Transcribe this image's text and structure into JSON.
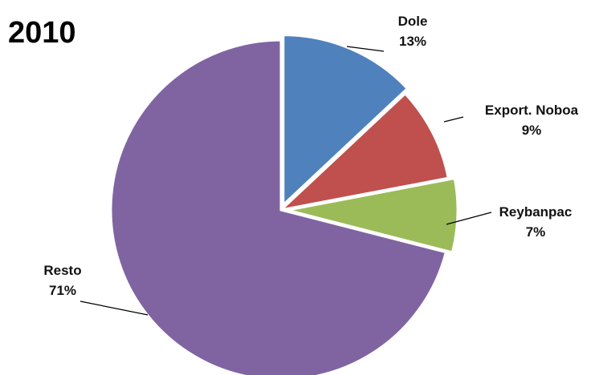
{
  "chart_data": {
    "type": "pie",
    "title": "2010",
    "slices": [
      {
        "label": "Dole",
        "value": 13,
        "display": "13%",
        "color": "#4F81BD"
      },
      {
        "label": "Export. Noboa",
        "value": 9,
        "display": "9%",
        "color": "#C0504D"
      },
      {
        "label": "Reybanpac",
        "value": 7,
        "display": "7%",
        "color": "#9BBB59"
      },
      {
        "label": "Resto",
        "value": 71,
        "display": "71%",
        "color": "#8064A2"
      }
    ],
    "start_angle_deg": 0,
    "direction": "clockwise",
    "exploded": [
      "Dole",
      "Reybanpac"
    ],
    "legend": "none"
  }
}
